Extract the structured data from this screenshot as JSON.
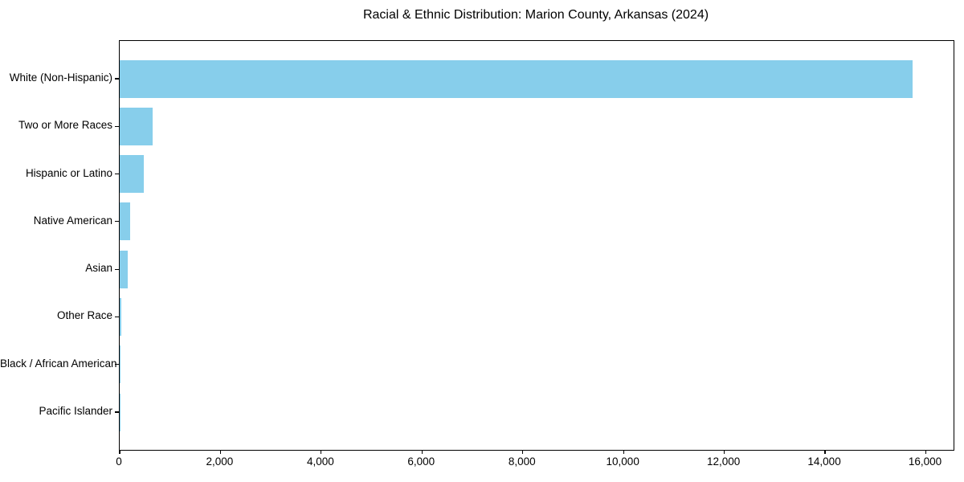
{
  "chart_data": {
    "type": "bar",
    "orientation": "horizontal",
    "title": "Racial & Ethnic Distribution: Marion County, Arkansas (2024)",
    "categories": [
      "White (Non-Hispanic)",
      "Two or More Races",
      "Hispanic or Latino",
      "Native American",
      "Asian",
      "Other Race",
      "Black / African American",
      "Pacific Islander"
    ],
    "values": [
      15740,
      650,
      485,
      200,
      160,
      25,
      12,
      4
    ],
    "xlabel": "",
    "ylabel": "",
    "xlim": [
      0,
      16550
    ],
    "xticks": [
      0,
      2000,
      4000,
      6000,
      8000,
      10000,
      12000,
      14000,
      16000
    ],
    "xtick_labels": [
      "0",
      "2,000",
      "4,000",
      "6,000",
      "8,000",
      "10,000",
      "12,000",
      "14,000",
      "16,000"
    ],
    "bar_color": "#87CEEB",
    "background_color": "#FFFFFF",
    "text_color": "#000000",
    "grid": false,
    "legend": "none"
  }
}
